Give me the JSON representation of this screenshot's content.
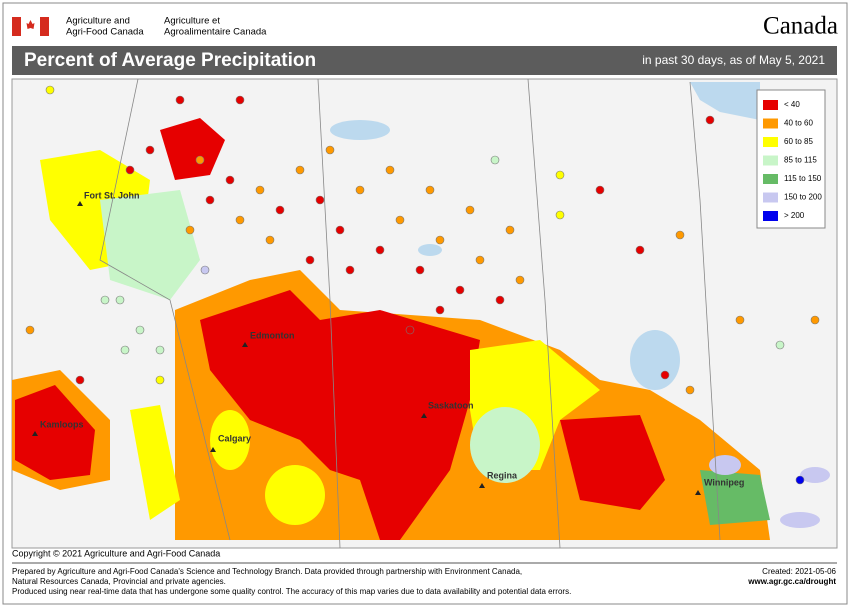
{
  "header": {
    "agency_en": [
      "Agriculture and",
      "Agri-Food Canada"
    ],
    "agency_fr": [
      "Agriculture et",
      "Agroalimentaire Canada"
    ],
    "wordmark": "Canada"
  },
  "title": "Percent of Average Precipitation",
  "subtitle": "in past 30 days, as of May 5, 2021",
  "cities": [
    "Fort St. John",
    "Edmonton",
    "Kamloops",
    "Calgary",
    "Saskatoon",
    "Regina",
    "Winnipeg"
  ],
  "legend": [
    {
      "label": "< 40",
      "color": "#e60000"
    },
    {
      "label": "40 to 60",
      "color": "#ff9900"
    },
    {
      "label": "60 to 85",
      "color": "#ffff00"
    },
    {
      "label": "85 to 115",
      "color": "#c8f5c8"
    },
    {
      "label": "115 to 150",
      "color": "#66bb66"
    },
    {
      "label": "150 to 200",
      "color": "#c8c8f0"
    },
    {
      "label": "> 200",
      "color": "#0000ee"
    }
  ],
  "copyright": "Copyright © 2021 Agriculture and Agri-Food Canada",
  "footer": {
    "lines": [
      "Prepared by Agriculture and Agri-Food Canada's Science and Technology Branch. Data provided through partnership with Environment Canada,",
      "Natural Resources Canada, Provincial and private agencies.",
      "Produced using near real-time data that has undergone some quality control. The accuracy of this map varies due to data availability and potential data errors."
    ],
    "created": "Created: 2021-05-06",
    "url": "www.agr.gc.ca/drought"
  }
}
